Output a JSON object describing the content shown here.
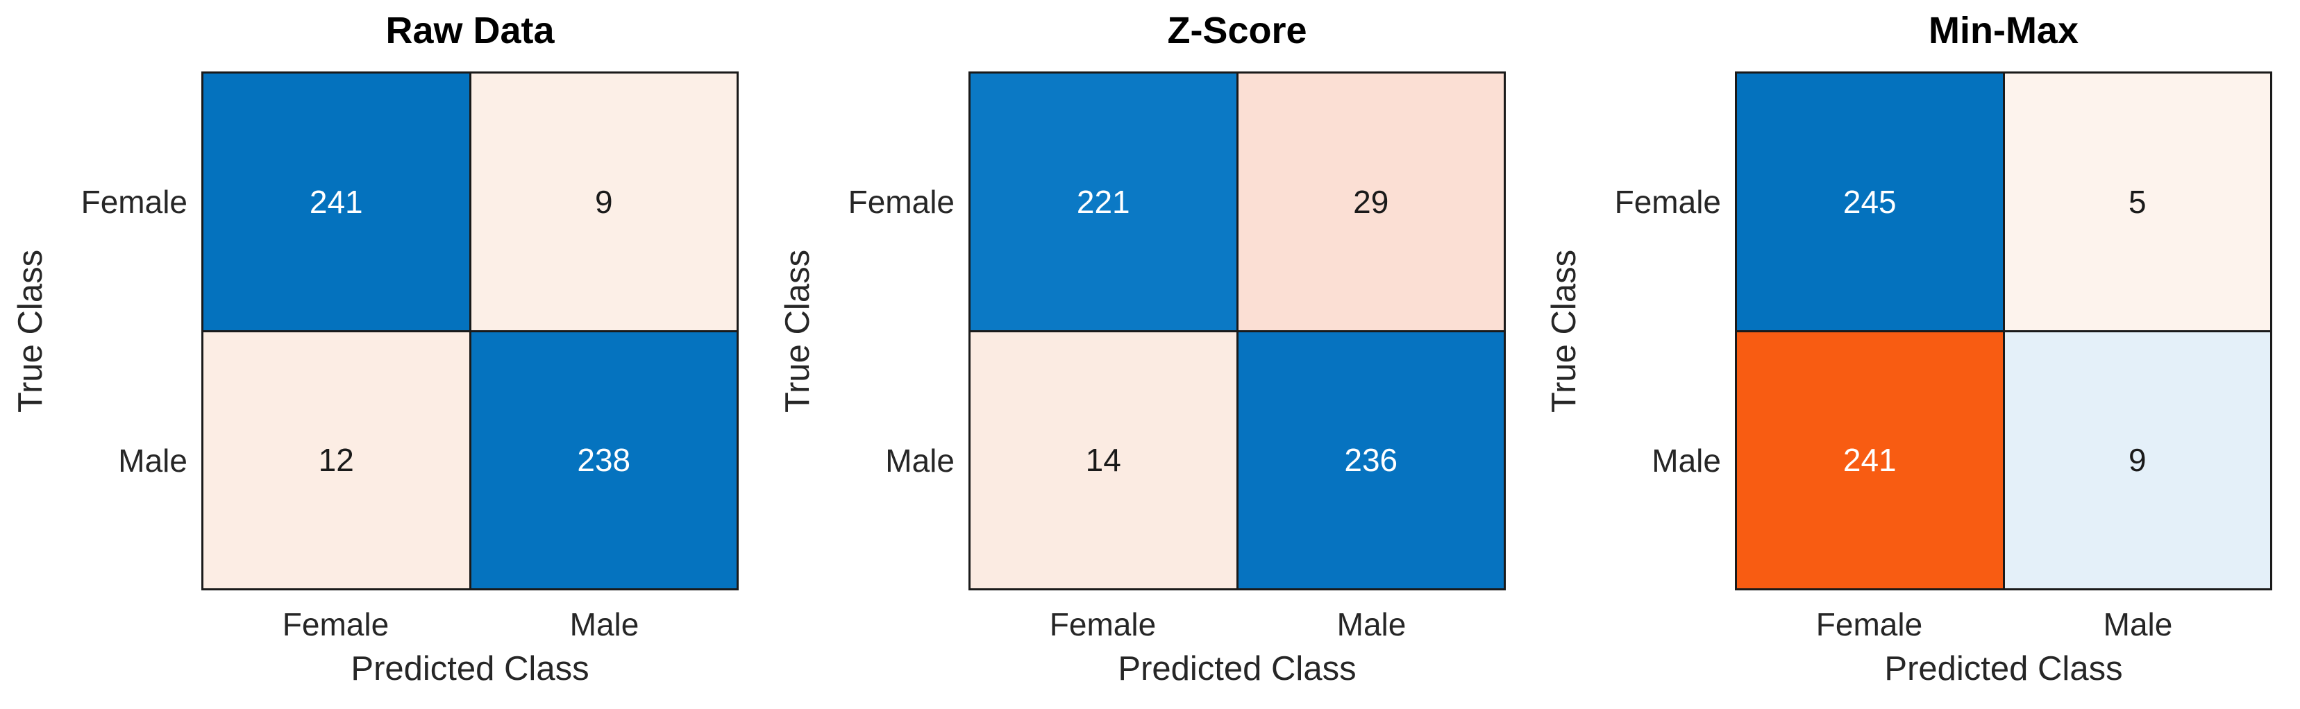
{
  "figure": {
    "background_color": "#ffffff",
    "axis_text_color": "#262626",
    "grid_line_color": "#1a1a1a",
    "diagonal_accent_color": "#0472BE",
    "off_diagonal_accent_color": "#F85C12"
  },
  "panels": [
    {
      "title": "Raw Data",
      "xlabel": "Predicted Class",
      "ylabel": "True Class",
      "y_ticks": [
        "Female",
        "Male"
      ],
      "x_ticks": [
        "Female",
        "Male"
      ],
      "cells": [
        {
          "value": 241,
          "bg": "#0472BE",
          "fg": "#FFFFFF"
        },
        {
          "value": 9,
          "bg": "#FCEFE7",
          "fg": "#1A1A1A"
        },
        {
          "value": 12,
          "bg": "#FCEDE4",
          "fg": "#1A1A1A"
        },
        {
          "value": 238,
          "bg": "#0573BF",
          "fg": "#FFFFFF"
        }
      ]
    },
    {
      "title": "Z-Score",
      "xlabel": "Predicted Class",
      "ylabel": "True Class",
      "y_ticks": [
        "Female",
        "Male"
      ],
      "x_ticks": [
        "Female",
        "Male"
      ],
      "cells": [
        {
          "value": 221,
          "bg": "#0B79C5",
          "fg": "#FFFFFF"
        },
        {
          "value": 29,
          "bg": "#FBDFD4",
          "fg": "#1A1A1A"
        },
        {
          "value": 14,
          "bg": "#FBEBE2",
          "fg": "#1A1A1A"
        },
        {
          "value": 236,
          "bg": "#0673C0",
          "fg": "#FFFFFF"
        }
      ]
    },
    {
      "title": "Min-Max",
      "xlabel": "Predicted Class",
      "ylabel": "True Class",
      "y_ticks": [
        "Female",
        "Male"
      ],
      "x_ticks": [
        "Female",
        "Male"
      ],
      "cells": [
        {
          "value": 245,
          "bg": "#0472BE",
          "fg": "#FFFFFF"
        },
        {
          "value": 5,
          "bg": "#FDF3ED",
          "fg": "#1A1A1A"
        },
        {
          "value": 241,
          "bg": "#F85C12",
          "fg": "#FFFFFF"
        },
        {
          "value": 9,
          "bg": "#E4F0F9",
          "fg": "#1A1A1A"
        }
      ]
    }
  ],
  "chart_data": [
    {
      "type": "heatmap",
      "subtype": "confusion-matrix",
      "title": "Raw Data",
      "xlabel": "Predicted Class",
      "ylabel": "True Class",
      "x_categories": [
        "Female",
        "Male"
      ],
      "y_categories": [
        "Female",
        "Male"
      ],
      "matrix": [
        [
          241,
          9
        ],
        [
          12,
          238
        ]
      ],
      "diagonal_color": "blue",
      "off_diagonal_color": "orange",
      "legend": "none",
      "grid": "cell-borders"
    },
    {
      "type": "heatmap",
      "subtype": "confusion-matrix",
      "title": "Z-Score",
      "xlabel": "Predicted Class",
      "ylabel": "True Class",
      "x_categories": [
        "Female",
        "Male"
      ],
      "y_categories": [
        "Female",
        "Male"
      ],
      "matrix": [
        [
          221,
          29
        ],
        [
          14,
          236
        ]
      ],
      "diagonal_color": "blue",
      "off_diagonal_color": "orange",
      "legend": "none",
      "grid": "cell-borders"
    },
    {
      "type": "heatmap",
      "subtype": "confusion-matrix",
      "title": "Min-Max",
      "xlabel": "Predicted Class",
      "ylabel": "True Class",
      "x_categories": [
        "Female",
        "Male"
      ],
      "y_categories": [
        "Female",
        "Male"
      ],
      "matrix": [
        [
          245,
          5
        ],
        [
          241,
          9
        ]
      ],
      "diagonal_color": "blue",
      "off_diagonal_color": "orange",
      "legend": "none",
      "grid": "cell-borders"
    }
  ]
}
